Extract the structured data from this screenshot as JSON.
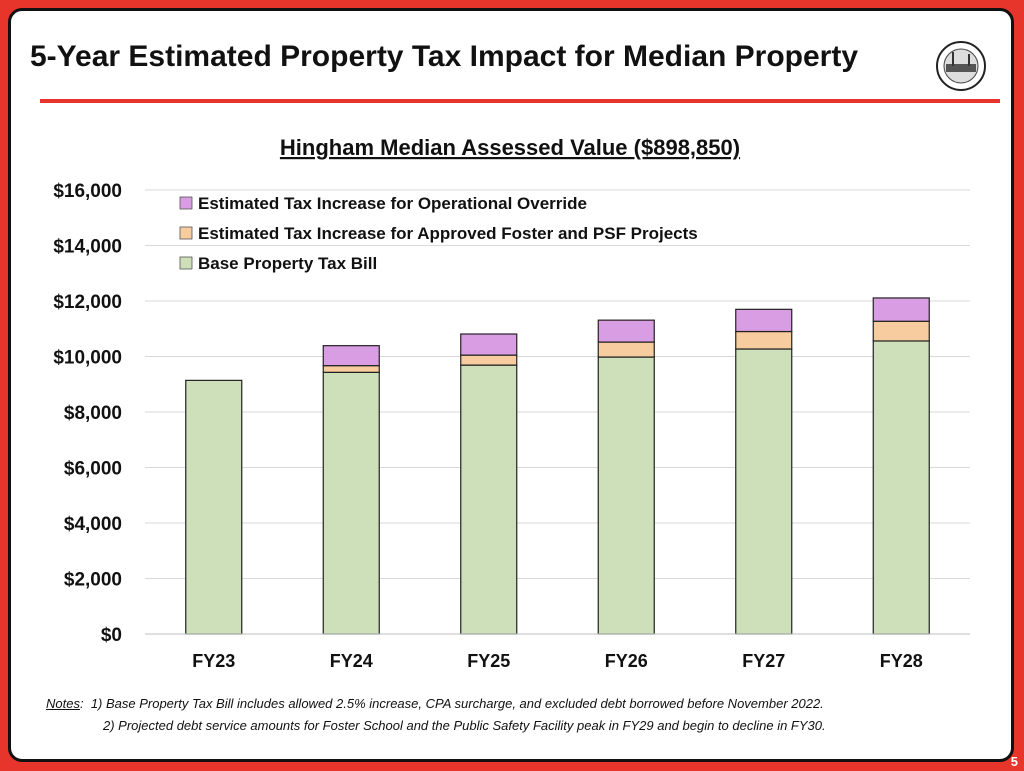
{
  "slide": {
    "title": "5-Year Estimated Property Tax Impact for Median Property",
    "page_number": "5",
    "notes_label": "Notes",
    "notes": [
      "1) Base Property Tax Bill includes allowed 2.5% increase, CPA surcharge, and excluded debt borrowed before November 2022.",
      "2) Projected debt service amounts for Foster School and the Public Safety Facility peak in FY29 and begin to decline in FY30."
    ]
  },
  "chart_data": {
    "type": "bar",
    "stacked": true,
    "title": "Hingham Median Assessed Value ($898,850)",
    "xlabel": "",
    "ylabel": "",
    "ylim": [
      0,
      16000
    ],
    "yticks": [
      0,
      2000,
      4000,
      6000,
      8000,
      10000,
      12000,
      14000,
      16000
    ],
    "ytick_labels": [
      "$0",
      "$2,000",
      "$4,000",
      "$6,000",
      "$8,000",
      "$10,000",
      "$12,000",
      "$14,000",
      "$16,000"
    ],
    "grid": true,
    "legend_position": "top-left",
    "categories": [
      "FY23",
      "FY24",
      "FY25",
      "FY26",
      "FY27",
      "FY28"
    ],
    "series": [
      {
        "name": "Base Property Tax Bill",
        "color": "#cde0b9",
        "values": [
          9140,
          9430,
          9690,
          9980,
          10270,
          10560
        ]
      },
      {
        "name": "Estimated Tax Increase for Approved Foster and PSF Projects",
        "color": "#f7cc9e",
        "values": [
          0,
          240,
          360,
          540,
          630,
          710
        ]
      },
      {
        "name": "Estimated Tax Increase for Operational Override",
        "color": "#d99de3",
        "values": [
          0,
          720,
          760,
          790,
          800,
          840
        ]
      }
    ],
    "legend_order": [
      2,
      1,
      0
    ]
  }
}
